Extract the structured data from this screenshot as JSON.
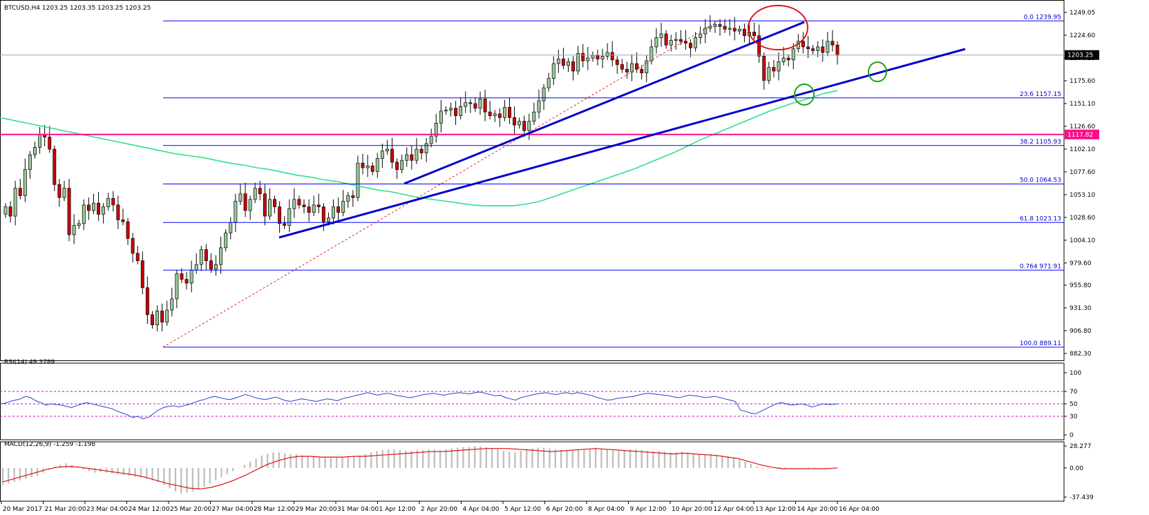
{
  "header": {
    "symbol_title": "BTCUSD,H4  1203.25 1203.35 1203.25 1203.25"
  },
  "colors": {
    "candle_up": "#98c898",
    "candle_down": "#d00000",
    "fib_line": "#0000ff",
    "trend_line": "#0000cc",
    "ma_line": "#2ee08a",
    "resistance_line": "#ff0a8c",
    "rsi_line": "#2a3ccc",
    "macd_signal": "#e01010",
    "macd_hist": "#c0c0c0",
    "level_dotted": "#cc00cc",
    "highlight_red": "#e01010",
    "highlight_green": "#1ea01e"
  },
  "chart_data": [
    {
      "type": "candlestick",
      "title": "BTCUSD,H4",
      "timeframe": "H4",
      "ylim": [
        882.3,
        1249.05
      ],
      "y_ticks": [
        "1249.05",
        "1224.60",
        "1200.15",
        "1175.60",
        "1151.10",
        "1126.60",
        "1102.10",
        "1077.60",
        "1053.10",
        "1028.60",
        "1004.10",
        "979.60",
        "955.80",
        "931.30",
        "906.80",
        "882.30"
      ],
      "x_ticks": [
        "20 Mar 2017",
        "21 Mar 20:00",
        "23 Mar 04:00",
        "24 Mar 12:00",
        "25 Mar 20:00",
        "27 Mar 04:00",
        "28 Mar 12:00",
        "29 Mar 20:00",
        "31 Mar 04:00",
        "1 Apr 12:00",
        "2 Apr 20:00",
        "4 Apr 04:00",
        "5 Apr 12:00",
        "6 Apr 20:00",
        "8 Apr 04:00",
        "9 Apr 12:00",
        "10 Apr 20:00",
        "12 Apr 04:00",
        "13 Apr 12:00",
        "14 Apr 20:00",
        "16 Apr 04:00"
      ],
      "close": [
        1040,
        1030,
        1060,
        1052,
        1080,
        1096,
        1104,
        1118,
        1115,
        1102,
        1064,
        1050,
        1060,
        1010,
        1020,
        1022,
        1042,
        1036,
        1044,
        1032,
        1040,
        1049,
        1042,
        1026,
        1024,
        1006,
        990,
        982,
        953,
        924,
        913,
        928,
        916,
        929,
        941,
        968,
        962,
        958,
        972,
        978,
        994,
        982,
        973,
        978,
        996,
        1012,
        1023,
        1046,
        1054,
        1036,
        1048,
        1060,
        1054,
        1030,
        1048,
        1040,
        1022,
        1020,
        1038,
        1048,
        1042,
        1040,
        1034,
        1042,
        1040,
        1024,
        1028,
        1040,
        1034,
        1046,
        1052,
        1050,
        1087,
        1082,
        1084,
        1078,
        1092,
        1100,
        1102,
        1088,
        1080,
        1090,
        1096,
        1090,
        1102,
        1098,
        1108,
        1116,
        1130,
        1143,
        1144,
        1146,
        1138,
        1148,
        1152,
        1151,
        1146,
        1156,
        1142,
        1138,
        1140,
        1136,
        1147,
        1136,
        1128,
        1132,
        1122,
        1132,
        1142,
        1154,
        1168,
        1178,
        1194,
        1199,
        1192,
        1196,
        1186,
        1205,
        1197,
        1200,
        1203,
        1199,
        1202,
        1206,
        1198,
        1193,
        1188,
        1185,
        1194,
        1188,
        1184,
        1197,
        1212,
        1222,
        1226,
        1214,
        1219,
        1220,
        1218,
        1216,
        1211,
        1222,
        1226,
        1232,
        1234,
        1236,
        1234,
        1231,
        1232,
        1229,
        1231,
        1224,
        1228,
        1224,
        1202,
        1176,
        1190,
        1186,
        1196,
        1200,
        1198,
        1210,
        1218,
        1212,
        1210,
        1208,
        1212,
        1206,
        1218,
        1214,
        1203
      ],
      "fibonacci": [
        {
          "ratio": "0.0",
          "price": "1239.95"
        },
        {
          "ratio": "23.6",
          "price": "1157.15"
        },
        {
          "ratio": "38.2",
          "price": "1105.93"
        },
        {
          "ratio": "50.0",
          "price": "1064.53"
        },
        {
          "ratio": "61.8",
          "price": "1023.13"
        },
        {
          "ratio": "0.764",
          "price": "971.91"
        },
        {
          "ratio": "100.0",
          "price": "889.11"
        }
      ],
      "current_price": "1203.25",
      "resistance_level": "1117.82",
      "moving_average": [
        1136,
        1133,
        1130,
        1127,
        1124,
        1121,
        1118,
        1115,
        1112,
        1109,
        1106,
        1103,
        1100,
        1097,
        1095,
        1093,
        1090,
        1087,
        1085,
        1082,
        1080,
        1077,
        1074,
        1072,
        1069,
        1067,
        1064,
        1061,
        1058,
        1056,
        1053,
        1050,
        1048,
        1046,
        1044,
        1042,
        1041,
        1041,
        1041,
        1043,
        1046,
        1051,
        1056,
        1061,
        1066,
        1071,
        1076,
        1081,
        1087,
        1093,
        1099,
        1106,
        1113,
        1119,
        1125,
        1131,
        1137,
        1143,
        1148,
        1153,
        1157,
        1162,
        1165
      ]
    },
    {
      "type": "line",
      "title": "RSI(14) 49.3789",
      "ylim": [
        0,
        100
      ],
      "y_ticks": [
        "100",
        "70",
        "50",
        "30",
        "0"
      ],
      "levels": [
        70,
        50,
        30
      ],
      "values": [
        50,
        51,
        54,
        56,
        58,
        62,
        60,
        55,
        52,
        48,
        50,
        49,
        48,
        46,
        44,
        47,
        50,
        52,
        50,
        48,
        46,
        44,
        42,
        38,
        35,
        32,
        28,
        30,
        26,
        28,
        34,
        40,
        44,
        46,
        47,
        45,
        47,
        49,
        52,
        55,
        57,
        60,
        62,
        60,
        58,
        57,
        59,
        62,
        65,
        63,
        60,
        58,
        57,
        59,
        61,
        58,
        55,
        54,
        56,
        58,
        57,
        55,
        54,
        56,
        58,
        57,
        55,
        58,
        60,
        62,
        64,
        66,
        68,
        66,
        64,
        66,
        67,
        65,
        63,
        62,
        60,
        61,
        63,
        65,
        66,
        67,
        65,
        64,
        66,
        67,
        68,
        67,
        66,
        68,
        69,
        67,
        65,
        63,
        64,
        60,
        58,
        56,
        60,
        62,
        64,
        66,
        67,
        68,
        66,
        65,
        67,
        68,
        66,
        68,
        67,
        65,
        63,
        60,
        58,
        56,
        57,
        59,
        60,
        61,
        62,
        64,
        66,
        67,
        66,
        65,
        64,
        63,
        61,
        60,
        62,
        64,
        63,
        62,
        60,
        61,
        62,
        60,
        58,
        56,
        54,
        40,
        38,
        35,
        34,
        38,
        42,
        46,
        50,
        52,
        50,
        48,
        49,
        50,
        48,
        45,
        47,
        50,
        49,
        49,
        50
      ]
    },
    {
      "type": "bar_line",
      "title": "MACD(12,26,9) -1.259 -1.198",
      "ylim": [
        -37.439,
        28.277
      ],
      "y_ticks": [
        "28.277",
        "0.00",
        "-37.439"
      ],
      "histogram": [
        -22,
        -20,
        -18,
        -16,
        -14,
        -12,
        -10,
        -6,
        -2,
        2,
        4,
        6,
        4,
        2,
        -2,
        -4,
        -6,
        -5,
        -6,
        -7,
        -8,
        -9,
        -10,
        -11,
        -12,
        -14,
        -16,
        -18,
        -22,
        -26,
        -30,
        -33,
        -32,
        -30,
        -28,
        -24,
        -20,
        -16,
        -12,
        -8,
        -4,
        0,
        4,
        8,
        12,
        16,
        18,
        20,
        20,
        19,
        18,
        18,
        16,
        15,
        15,
        14,
        14,
        13,
        14,
        14,
        14,
        15,
        16,
        18,
        20,
        22,
        23,
        24,
        24,
        23,
        22,
        22,
        23,
        23,
        24,
        24,
        23,
        24,
        25,
        26,
        27,
        27,
        28,
        28,
        27,
        26,
        24,
        22,
        21,
        20,
        22,
        24,
        25,
        26,
        26,
        25,
        24,
        23,
        22,
        22,
        23,
        24,
        25,
        26,
        25,
        24,
        22,
        22,
        23,
        24,
        24,
        23,
        22,
        22,
        22,
        21,
        20,
        20,
        21,
        20,
        19,
        18,
        18,
        18,
        17,
        16,
        15,
        14,
        11,
        8,
        5,
        2,
        -1,
        -1,
        0,
        1,
        1,
        0,
        -1,
        0,
        1,
        1,
        0,
        0,
        0,
        0
      ],
      "signal": [
        -18,
        -14,
        -10,
        -6,
        -2,
        1,
        2,
        1,
        -1,
        -3,
        -5,
        -7,
        -9,
        -12,
        -16,
        -20,
        -23,
        -26,
        -27,
        -25,
        -21,
        -16,
        -10,
        -3,
        4,
        9,
        13,
        15,
        15,
        14,
        14,
        14,
        15,
        15,
        16,
        17,
        18,
        19,
        20,
        21,
        21,
        22,
        23,
        24,
        25,
        25,
        25,
        24,
        23,
        22,
        21,
        22,
        23,
        24,
        25,
        24,
        23,
        22,
        21,
        20,
        19,
        18,
        19,
        18,
        17,
        16,
        14,
        12,
        8,
        4,
        1,
        -1,
        -1,
        -1,
        -1,
        -1,
        0
      ]
    }
  ]
}
